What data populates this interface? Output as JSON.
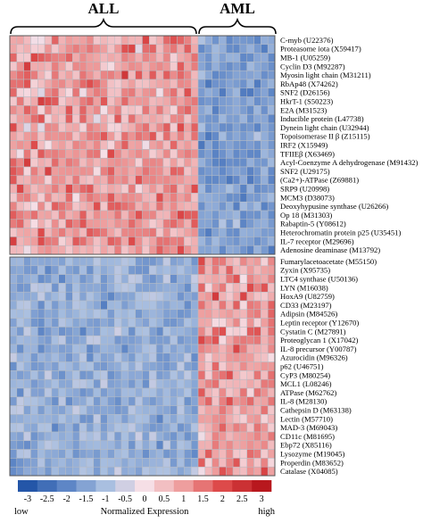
{
  "chart_data": {
    "type": "heatmap",
    "group_labels": [
      "ALL",
      "AML"
    ],
    "panels": [
      {
        "block": "upper",
        "high_in_group": "ALL",
        "genes": [
          "C-myb (U22376)",
          "Proteasome iota (X59417)",
          "MB-1 (U05259)",
          "Cyclin D3 (M92287)",
          "Myosin light chain (M31211)",
          "RbAp48 (X74262)",
          "SNF2 (D26156)",
          "HkrT-1 (S50223)",
          "E2A (M31523)",
          "Inducible protein (L47738)",
          "Dynein light chain (U32944)",
          "Topoisomerase II β (Z15115)",
          "IRF2 (X15949)",
          "TFIIEβ (X63469)",
          "Acyl-Coenzyme A dehydrogenase (M91432)",
          "SNF2 (U29175)",
          "(Ca2+)-ATPase (Z69881)",
          "SRP9 (U20998)",
          "MCM3 (D38073)",
          "Deoxyhypusine synthase (U26266)",
          "Op 18 (M31303)",
          "Rabaptin-5 (Y08612)",
          "Heterochromatin protein p25 (U35451)",
          "IL-7 receptor (M29696)",
          "Adenosine deaminase (M13792)"
        ]
      },
      {
        "block": "lower",
        "high_in_group": "AML",
        "genes": [
          "Fumarylacetoacetate (M55150)",
          "Zyxin (X95735)",
          "LTC4 synthase (U50136)",
          "LYN (M16038)",
          "HoxA9 (U82759)",
          "CD33 (M23197)",
          "Adipsin (M84526)",
          "Leptin receptor (Y12670)",
          "Cystatin C (M27891)",
          "Proteoglycan 1 (X17042)",
          "IL-8 precursor (Y00787)",
          "Azurocidin (M96326)",
          "p62 (U46751)",
          "CyP3 (M80254)",
          "MCL1 (L08246)",
          "ATPase (M62762)",
          "IL-8 (M28130)",
          "Cathepsin D (M63138)",
          "Lectin (M57710)",
          "MAD-3 (M69043)",
          "CD11c (M81695)",
          "Ebp72 (X85116)",
          "Lysozyme (M19045)",
          "Properdin (M83652)",
          "Catalase (X04085)"
        ]
      }
    ],
    "color_scale": {
      "ticks": [
        "-3",
        "-2.5",
        "-2",
        "-1.5",
        "-1",
        "-0.5",
        "0",
        "0.5",
        "1",
        "1.5",
        "2",
        "2.5",
        "3"
      ],
      "range": [
        -3,
        3
      ],
      "colors": [
        "#2456a8",
        "#5e86c6",
        "#a9bfe0",
        "#f6dfe6",
        "#ee9e9e",
        "#dd4a4a",
        "#b8181e"
      ],
      "low_label": "low",
      "high_label": "high",
      "title": "Normalized Expression"
    }
  }
}
